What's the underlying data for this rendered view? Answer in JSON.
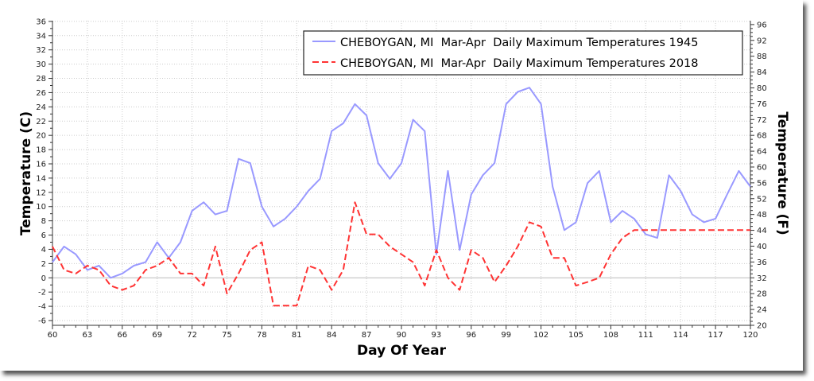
{
  "chart_data": {
    "type": "line",
    "xlabel": "Day Of Year",
    "ylabel": "Temperature (C)",
    "y2label": "Temperature (F)",
    "xlim": [
      60,
      120
    ],
    "ylim": [
      -6.67,
      36.1
    ],
    "xticks": [
      60,
      63,
      66,
      69,
      72,
      75,
      78,
      81,
      84,
      87,
      90,
      93,
      96,
      99,
      102,
      105,
      108,
      111,
      114,
      117,
      120
    ],
    "yticks": [
      -6,
      -4,
      -2,
      0,
      2,
      4,
      6,
      8,
      10,
      12,
      14,
      16,
      18,
      20,
      22,
      24,
      26,
      28,
      30,
      32,
      34,
      36
    ],
    "y2ticks": [
      20,
      24,
      28,
      32,
      36,
      40,
      44,
      48,
      52,
      56,
      60,
      64,
      68,
      72,
      76,
      80,
      84,
      88,
      92,
      96
    ],
    "grid": true,
    "legend_position": "top-right",
    "x": [
      60,
      61,
      62,
      63,
      64,
      65,
      66,
      67,
      68,
      69,
      70,
      71,
      72,
      73,
      74,
      75,
      76,
      77,
      78,
      79,
      80,
      81,
      82,
      83,
      84,
      85,
      86,
      87,
      88,
      89,
      90,
      91,
      92,
      93,
      94,
      95,
      96,
      97,
      98,
      99,
      100,
      101,
      102,
      103,
      104,
      105,
      106,
      107,
      108,
      109,
      110,
      111,
      112,
      113,
      114,
      115,
      116,
      117,
      118,
      119,
      120
    ],
    "series": [
      {
        "name": "CHEBOYGAN, MI  Mar-Apr  Daily Maximum Temperatures 1945",
        "color": "#9999ff",
        "style": "solid",
        "values": [
          2.2,
          4.4,
          3.3,
          1.1,
          1.7,
          0,
          0.6,
          1.7,
          2.2,
          5.0,
          2.8,
          5.0,
          9.4,
          10.6,
          8.9,
          9.4,
          16.7,
          16.1,
          10.0,
          7.2,
          8.3,
          10.0,
          12.2,
          13.9,
          20.6,
          21.7,
          24.4,
          22.8,
          16.1,
          13.9,
          16.1,
          22.2,
          20.6,
          3.3,
          15.0,
          3.9,
          11.7,
          14.4,
          16.1,
          24.4,
          26.1,
          26.7,
          24.4,
          12.8,
          6.7,
          7.8,
          13.3,
          15.0,
          7.8,
          9.4,
          8.3,
          6.1,
          5.6,
          14.4,
          12.2,
          8.9,
          7.8,
          8.3,
          11.7,
          15.0,
          12.8
        ]
      },
      {
        "name": "CHEBOYGAN, MI  Mar-Apr  Daily Maximum Temperatures 2018",
        "color": "#ff3333",
        "style": "dashed",
        "values": [
          4.4,
          1.1,
          0.6,
          1.7,
          1.1,
          -1.1,
          -1.7,
          -1.1,
          1.1,
          1.7,
          2.8,
          0.6,
          0.6,
          -1.1,
          4.4,
          -2.2,
          0.6,
          3.9,
          5.0,
          -3.9,
          -3.9,
          -3.9,
          1.7,
          1.1,
          -1.7,
          1.1,
          10.6,
          6.1,
          6.1,
          4.4,
          3.3,
          2.2,
          -1.1,
          3.9,
          0,
          -1.7,
          3.9,
          2.8,
          -0.6,
          1.7,
          4.4,
          7.8,
          7.2,
          2.8,
          2.8,
          -1.1,
          -0.6,
          0,
          3.3,
          5.6,
          6.7,
          6.7,
          6.7,
          6.7,
          6.7,
          6.7,
          6.7,
          6.7,
          6.7,
          6.7,
          6.7
        ]
      }
    ]
  }
}
